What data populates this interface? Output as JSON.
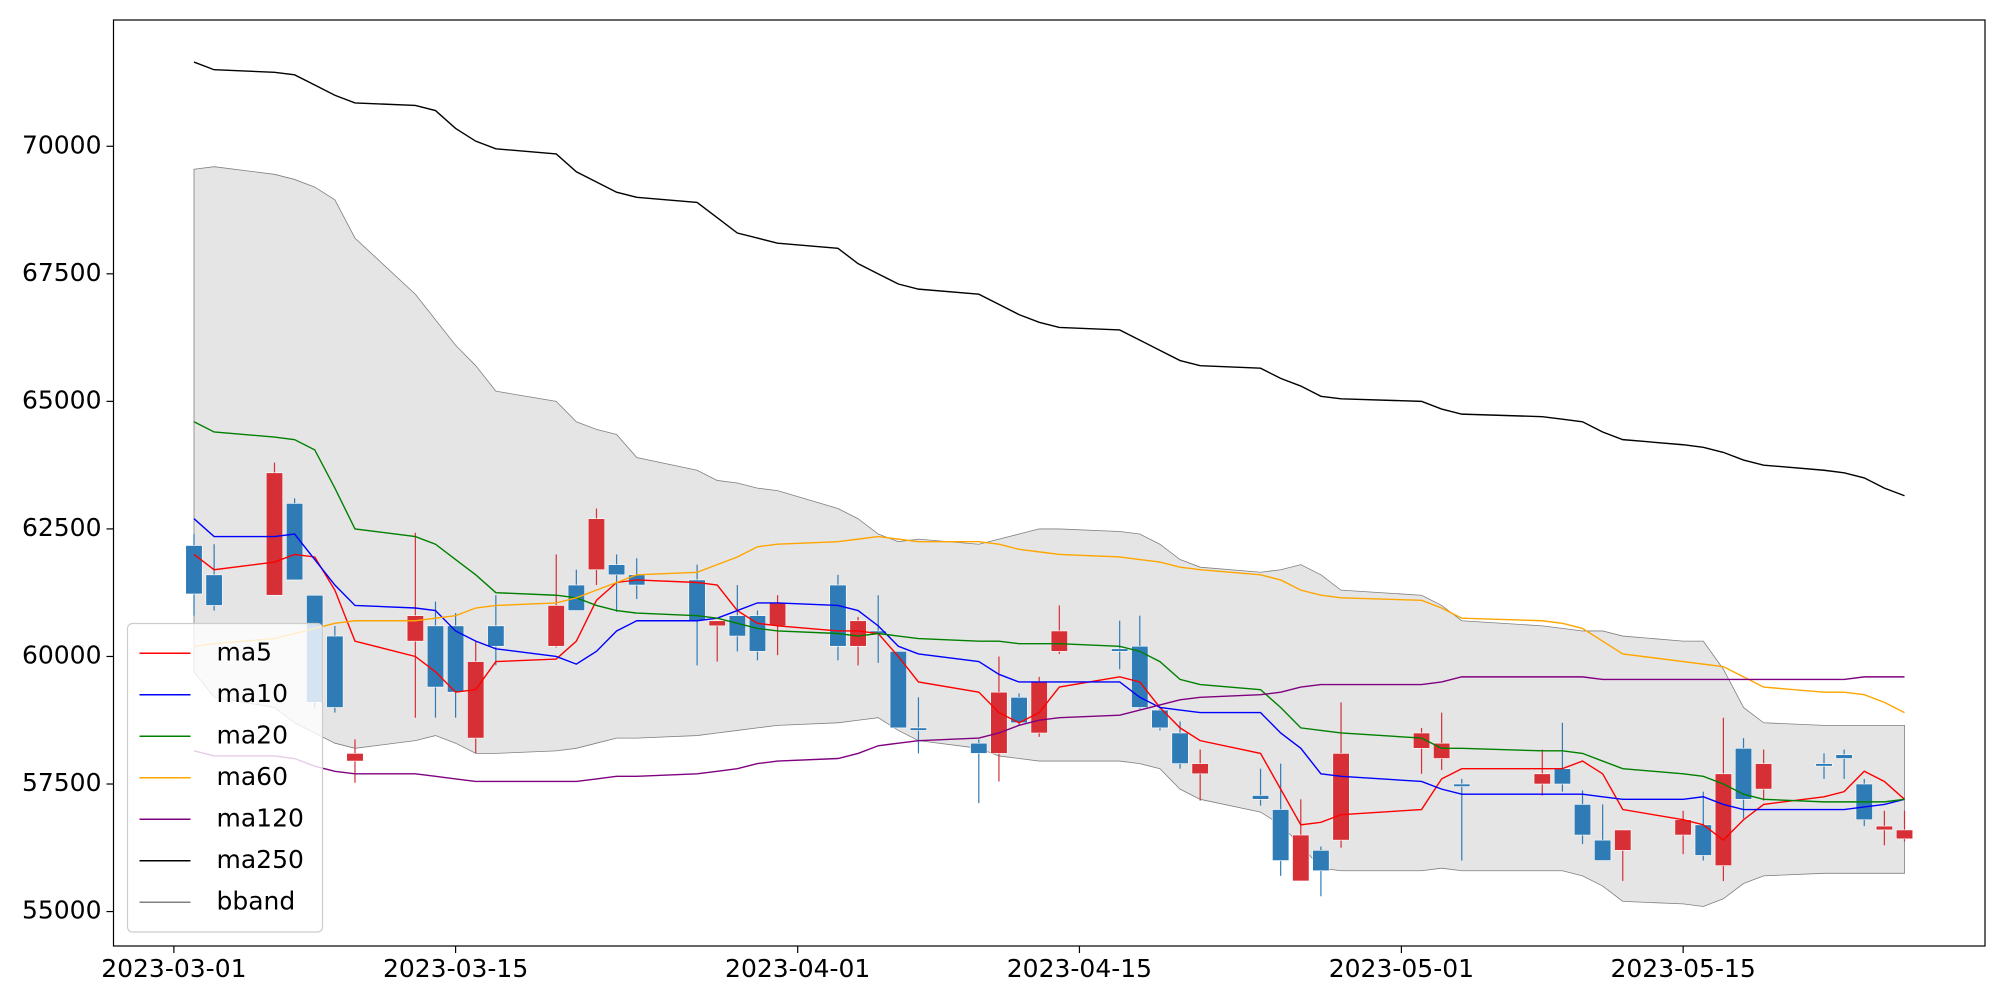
{
  "chart_data": {
    "type": "candlestick",
    "x": [
      "2023-03-02",
      "2023-03-03",
      "2023-03-06",
      "2023-03-07",
      "2023-03-08",
      "2023-03-09",
      "2023-03-10",
      "2023-03-13",
      "2023-03-14",
      "2023-03-15",
      "2023-03-16",
      "2023-03-17",
      "2023-03-20",
      "2023-03-21",
      "2023-03-22",
      "2023-03-23",
      "2023-03-24",
      "2023-03-27",
      "2023-03-28",
      "2023-03-29",
      "2023-03-30",
      "2023-03-31",
      "2023-04-03",
      "2023-04-04",
      "2023-04-05",
      "2023-04-06",
      "2023-04-07",
      "2023-04-10",
      "2023-04-11",
      "2023-04-12",
      "2023-04-13",
      "2023-04-14",
      "2023-04-17",
      "2023-04-18",
      "2023-04-19",
      "2023-04-20",
      "2023-04-21",
      "2023-04-24",
      "2023-04-25",
      "2023-04-26",
      "2023-04-27",
      "2023-04-28",
      "2023-05-02",
      "2023-05-03",
      "2023-05-04",
      "2023-05-08",
      "2023-05-09",
      "2023-05-10",
      "2023-05-11",
      "2023-05-12",
      "2023-05-15",
      "2023-05-16",
      "2023-05-17",
      "2023-05-18",
      "2023-05-19",
      "2023-05-22",
      "2023-05-23",
      "2023-05-24",
      "2023-05-25",
      "2023-05-26"
    ],
    "open": [
      62175,
      61600,
      61200,
      63000,
      61200,
      60400,
      57950,
      60300,
      60600,
      60600,
      58400,
      60600,
      60200,
      61400,
      61700,
      61800,
      61600,
      61500,
      60600,
      60800,
      60800,
      60600,
      61400,
      60200,
      60500,
      60100,
      58600,
      58300,
      58100,
      59200,
      58500,
      60100,
      60150,
      60200,
      58950,
      58500,
      57700,
      57275,
      57000,
      55600,
      56200,
      56400,
      58200,
      58000,
      57500,
      57500,
      57800,
      57100,
      56400,
      56200,
      56500,
      56700,
      55900,
      58200,
      57400,
      57900,
      58075,
      57500,
      56600,
      56425
    ],
    "high": [
      62400,
      62200,
      63800,
      63100,
      61200,
      60600,
      58375,
      62425,
      61075,
      60850,
      60300,
      61200,
      62000,
      61700,
      62900,
      62000,
      61925,
      61800,
      60700,
      61400,
      60900,
      61200,
      61600,
      60775,
      61200,
      60100,
      59200,
      58375,
      60000,
      59275,
      59600,
      61000,
      60700,
      60800,
      58975,
      58725,
      58175,
      57800,
      57900,
      57200,
      56275,
      59100,
      58600,
      58900,
      57600,
      58175,
      58700,
      57375,
      57100,
      56600,
      56975,
      57350,
      58800,
      58400,
      58175,
      58100,
      58175,
      57600,
      56975,
      56975
    ],
    "low": [
      60800,
      60900,
      61200,
      61500,
      59000,
      58900,
      57525,
      58800,
      58800,
      58800,
      58100,
      59825,
      60175,
      60900,
      61400,
      60875,
      61125,
      59825,
      59900,
      60100,
      59925,
      60025,
      59925,
      59825,
      59875,
      58600,
      58100,
      57125,
      57550,
      58650,
      58425,
      60050,
      59750,
      58975,
      58550,
      57800,
      57175,
      57075,
      55700,
      55600,
      55300,
      56250,
      57700,
      57775,
      56000,
      57275,
      57350,
      56325,
      56000,
      55600,
      56125,
      56000,
      55600,
      56825,
      57175,
      57600,
      57600,
      56675,
      56300,
      56375
    ],
    "close": [
      61225,
      61000,
      63600,
      61500,
      59100,
      59000,
      58100,
      60800,
      59400,
      59300,
      59900,
      60200,
      61000,
      60900,
      62700,
      61600,
      61400,
      60700,
      60700,
      60400,
      60100,
      61050,
      60200,
      60700,
      60450,
      58600,
      58550,
      58100,
      59300,
      58700,
      59500,
      60500,
      60100,
      59000,
      58600,
      57900,
      57900,
      57200,
      56000,
      56500,
      55800,
      58100,
      58500,
      58300,
      57450,
      57700,
      57500,
      56500,
      56000,
      56600,
      56800,
      56100,
      57700,
      57200,
      57900,
      57850,
      58000,
      56800,
      56675,
      56600
    ],
    "up_color": "#d62f35",
    "down_color": "#2f7bb5",
    "series": [
      {
        "name": "ma5",
        "color": "#ff0000",
        "values": [
          62000,
          61700,
          61850,
          62000,
          61950,
          61300,
          60300,
          60000,
          59700,
          59300,
          59350,
          59900,
          59950,
          60300,
          61100,
          61450,
          61500,
          61450,
          61400,
          60900,
          60650,
          60600,
          60500,
          60500,
          60450,
          60000,
          59500,
          59300,
          58900,
          58700,
          58900,
          59400,
          59600,
          59500,
          59000,
          58600,
          58350,
          58100,
          57400,
          56700,
          56750,
          56900,
          57000,
          57600,
          57800,
          57800,
          57800,
          57950,
          57700,
          57000,
          56800,
          56700,
          56400,
          56800,
          57100,
          57250,
          57350,
          57750,
          57550,
          57200
        ]
      },
      {
        "name": "ma10",
        "color": "#0000ff",
        "values": [
          62700,
          62350,
          62350,
          62400,
          61900,
          61400,
          61000,
          60950,
          60900,
          60500,
          60300,
          60150,
          60000,
          59850,
          60100,
          60500,
          60700,
          60700,
          60750,
          60900,
          61050,
          61050,
          61000,
          60900,
          60600,
          60200,
          60050,
          59900,
          59650,
          59500,
          59500,
          59500,
          59500,
          59200,
          59000,
          58950,
          58900,
          58900,
          58500,
          58200,
          57700,
          57650,
          57550,
          57400,
          57300,
          57300,
          57300,
          57300,
          57250,
          57200,
          57200,
          57250,
          57100,
          57000,
          57000,
          57000,
          57000,
          57050,
          57100,
          57200
        ]
      },
      {
        "name": "ma20",
        "color": "#008000",
        "values": [
          64600,
          64400,
          64300,
          64250,
          64050,
          63300,
          62500,
          62350,
          62200,
          61900,
          61600,
          61250,
          61200,
          61150,
          61000,
          60900,
          60850,
          60800,
          60750,
          60650,
          60550,
          60500,
          60450,
          60400,
          60450,
          60400,
          60350,
          60300,
          60300,
          60250,
          60250,
          60250,
          60200,
          60100,
          59900,
          59550,
          59450,
          59350,
          59000,
          58600,
          58550,
          58500,
          58400,
          58200,
          58200,
          58150,
          58150,
          58100,
          57950,
          57800,
          57700,
          57650,
          57500,
          57300,
          57200,
          57150,
          57150,
          57150,
          57150,
          57200
        ]
      },
      {
        "name": "ma60",
        "color": "#ffa500",
        "values": [
          60200,
          60250,
          60350,
          60450,
          60550,
          60650,
          60700,
          60700,
          60750,
          60800,
          60950,
          61000,
          61050,
          61150,
          61300,
          61450,
          61600,
          61650,
          61800,
          61950,
          62150,
          62200,
          62250,
          62300,
          62350,
          62300,
          62250,
          62250,
          62200,
          62100,
          62050,
          62000,
          61950,
          61900,
          61850,
          61750,
          61700,
          61600,
          61500,
          61300,
          61200,
          61150,
          61100,
          60950,
          60750,
          60700,
          60650,
          60550,
          60300,
          60050,
          59900,
          59850,
          59800,
          59600,
          59400,
          59300,
          59300,
          59250,
          59100,
          58900
        ]
      },
      {
        "name": "ma120",
        "color": "#800080",
        "values": [
          58150,
          58050,
          58050,
          58000,
          57850,
          57750,
          57700,
          57700,
          57650,
          57600,
          57550,
          57550,
          57550,
          57550,
          57600,
          57650,
          57650,
          57700,
          57750,
          57800,
          57900,
          57950,
          58000,
          58100,
          58250,
          58300,
          58350,
          58400,
          58500,
          58650,
          58750,
          58800,
          58850,
          58950,
          59050,
          59150,
          59200,
          59250,
          59300,
          59400,
          59450,
          59450,
          59450,
          59500,
          59600,
          59600,
          59600,
          59600,
          59550,
          59550,
          59550,
          59550,
          59550,
          59550,
          59550,
          59550,
          59550,
          59600,
          59600,
          59600
        ]
      },
      {
        "name": "ma250",
        "color": "#000000",
        "values": [
          71650,
          71500,
          71450,
          71400,
          71200,
          71000,
          70850,
          70800,
          70700,
          70350,
          70100,
          69950,
          69850,
          69500,
          69300,
          69100,
          69000,
          68900,
          68600,
          68300,
          68200,
          68100,
          68000,
          67700,
          67500,
          67300,
          67200,
          67100,
          66900,
          66700,
          66550,
          66450,
          66400,
          66200,
          66000,
          65800,
          65700,
          65650,
          65450,
          65300,
          65100,
          65050,
          65000,
          64850,
          64750,
          64700,
          64650,
          64600,
          64400,
          64250,
          64150,
          64100,
          64000,
          63850,
          63750,
          63650,
          63600,
          63500,
          63300,
          63150
        ]
      }
    ],
    "band": {
      "name": "bband",
      "color": "#808080",
      "fill": "#e5e5e5",
      "upper": [
        69550,
        69600,
        69450,
        69350,
        69200,
        68950,
        68200,
        67100,
        66600,
        66100,
        65700,
        65200,
        65000,
        64600,
        64450,
        64350,
        63900,
        63650,
        63450,
        63400,
        63300,
        63250,
        62900,
        62700,
        62400,
        62250,
        62300,
        62200,
        62300,
        62400,
        62500,
        62500,
        62450,
        62400,
        62200,
        61900,
        61750,
        61650,
        61700,
        61800,
        61600,
        61300,
        61200,
        61000,
        60700,
        60600,
        60550,
        60500,
        60500,
        60400,
        60300,
        60300,
        59750,
        59000,
        58700,
        58650,
        58650,
        58650,
        58650,
        58650
      ],
      "lower": [
        59700,
        59200,
        59000,
        58700,
        58500,
        58300,
        58200,
        58350,
        58450,
        58300,
        58100,
        58100,
        58150,
        58200,
        58300,
        58400,
        58400,
        58450,
        58500,
        58550,
        58600,
        58650,
        58700,
        58750,
        58800,
        58550,
        58350,
        58200,
        58050,
        58000,
        57950,
        57950,
        57950,
        57900,
        57800,
        57400,
        57200,
        56950,
        56700,
        56300,
        55850,
        55800,
        55800,
        55850,
        55800,
        55800,
        55800,
        55700,
        55500,
        55200,
        55150,
        55100,
        55250,
        55550,
        55700,
        55750,
        55750,
        55750,
        55750,
        55750
      ]
    },
    "xlim": [
      "2023-02-26",
      "2023-05-30"
    ],
    "xticks": [
      "2023-03-01",
      "2023-03-15",
      "2023-04-01",
      "2023-04-15",
      "2023-05-01",
      "2023-05-15"
    ],
    "ylim": [
      54325,
      72475
    ],
    "yticks": [
      55000,
      57500,
      60000,
      62500,
      65000,
      67500,
      70000
    ],
    "legend": "lower left"
  }
}
